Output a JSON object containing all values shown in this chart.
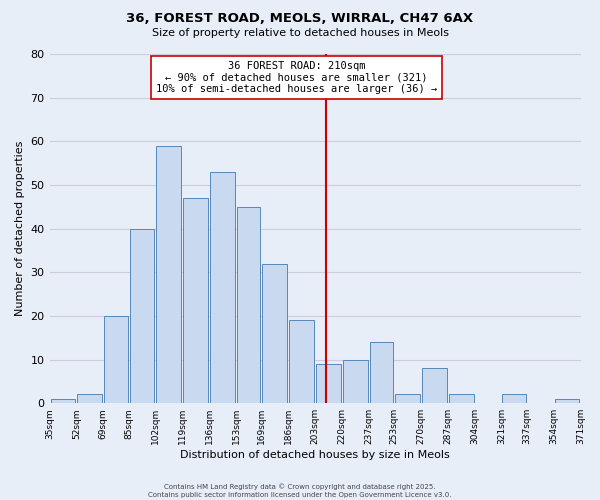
{
  "title": "36, FOREST ROAD, MEOLS, WIRRAL, CH47 6AX",
  "subtitle": "Size of property relative to detached houses in Meols",
  "xlabel": "Distribution of detached houses by size in Meols",
  "ylabel": "Number of detached properties",
  "bins": [
    35,
    52,
    69,
    85,
    102,
    119,
    136,
    153,
    169,
    186,
    203,
    220,
    237,
    253,
    270,
    287,
    304,
    321,
    337,
    354,
    371
  ],
  "bin_labels": [
    "35sqm",
    "52sqm",
    "69sqm",
    "85sqm",
    "102sqm",
    "119sqm",
    "136sqm",
    "153sqm",
    "169sqm",
    "186sqm",
    "203sqm",
    "220sqm",
    "237sqm",
    "253sqm",
    "270sqm",
    "287sqm",
    "304sqm",
    "321sqm",
    "337sqm",
    "354sqm",
    "371sqm"
  ],
  "heights": [
    1,
    2,
    20,
    40,
    59,
    47,
    53,
    45,
    32,
    19,
    9,
    10,
    14,
    2,
    8,
    2,
    0,
    2,
    0,
    1
  ],
  "bar_color": "#c8d9f0",
  "bar_edge_color": "#5588bb",
  "vline_x": 210,
  "vline_color": "#cc0000",
  "ylim": [
    0,
    80
  ],
  "yticks": [
    0,
    10,
    20,
    30,
    40,
    50,
    60,
    70,
    80
  ],
  "annotation_title": "36 FOREST ROAD: 210sqm",
  "annotation_line1": "← 90% of detached houses are smaller (321)",
  "annotation_line2": "10% of semi-detached houses are larger (36) →",
  "background_color": "#e8eef8",
  "grid_color": "#ccccdd",
  "footer_line1": "Contains HM Land Registry data © Crown copyright and database right 2025.",
  "footer_line2": "Contains public sector information licensed under the Open Government Licence v3.0."
}
